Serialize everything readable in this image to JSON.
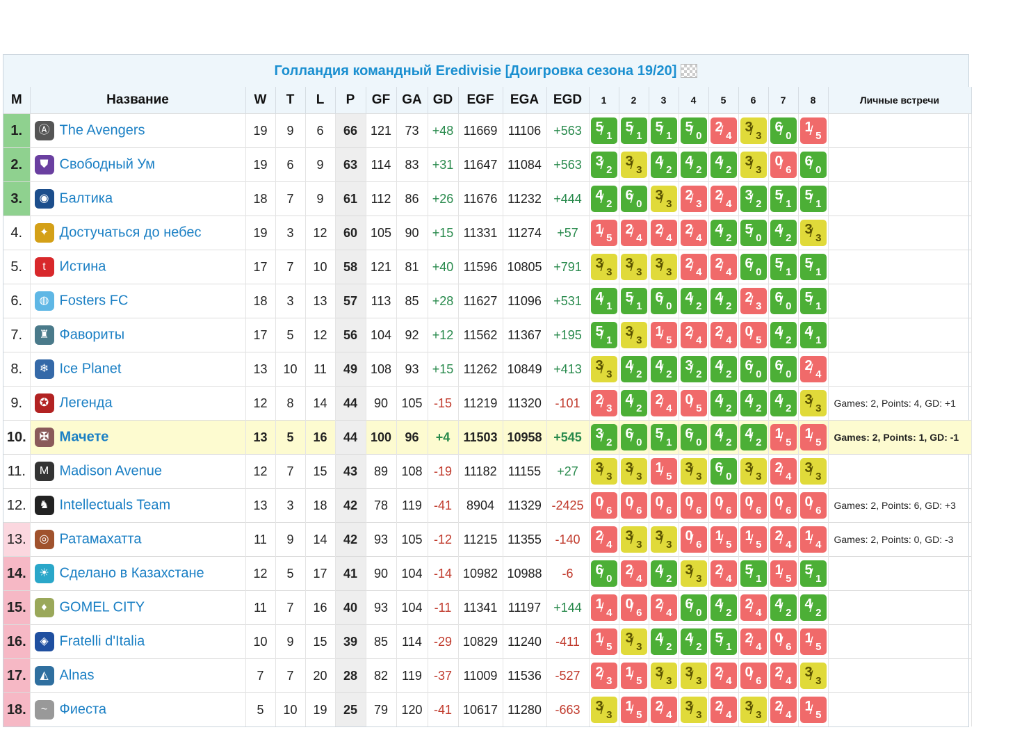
{
  "title": "Голландия командный Eredivisie [Доигровка сезона 19/20]",
  "headers": {
    "pos": "M",
    "name": "Название",
    "w": "W",
    "t": "T",
    "l": "L",
    "p": "P",
    "gf": "GF",
    "ga": "GA",
    "gd": "GD",
    "egf": "EGF",
    "ega": "EGA",
    "egd": "EGD",
    "games": [
      "1",
      "2",
      "3",
      "4",
      "5",
      "6",
      "7",
      "8"
    ],
    "h2h": "Личные встречи"
  },
  "colors": {
    "win": "#4caf36",
    "draw": "#e0da3a",
    "loss": "#f06a6a",
    "link": "#1a7fc4",
    "promo": "#8fd18f",
    "releg": "#f6b8c5",
    "highlight": "#fdfbd0"
  },
  "rows": [
    {
      "pos": "1.",
      "zone": "green",
      "name": "The Avengers",
      "logo": "avengers-logo",
      "w": "19",
      "t": "9",
      "l": "6",
      "p": "66",
      "gf": "121",
      "ga": "73",
      "gd": "+48",
      "egf": "11669",
      "ega": "11106",
      "egd": "+563",
      "games": [
        [
          "5",
          "1"
        ],
        [
          "5",
          "1"
        ],
        [
          "5",
          "1"
        ],
        [
          "5",
          "0"
        ],
        [
          "2",
          "4"
        ],
        [
          "3",
          "3"
        ],
        [
          "6",
          "0"
        ],
        [
          "1",
          "5"
        ]
      ],
      "h2h": ""
    },
    {
      "pos": "2.",
      "zone": "green",
      "name": "Свободный Ум",
      "logo": "shield-logo",
      "w": "19",
      "t": "6",
      "l": "9",
      "p": "63",
      "gf": "114",
      "ga": "83",
      "gd": "+31",
      "egf": "11647",
      "ega": "11084",
      "egd": "+563",
      "games": [
        [
          "3",
          "2"
        ],
        [
          "3",
          "3"
        ],
        [
          "4",
          "2"
        ],
        [
          "4",
          "2"
        ],
        [
          "4",
          "2"
        ],
        [
          "3",
          "3"
        ],
        [
          "0",
          "6"
        ],
        [
          "6",
          "0"
        ]
      ],
      "h2h": ""
    },
    {
      "pos": "3.",
      "zone": "green",
      "name": "Балтика",
      "logo": "baltika-logo",
      "w": "18",
      "t": "7",
      "l": "9",
      "p": "61",
      "gf": "112",
      "ga": "86",
      "gd": "+26",
      "egf": "11676",
      "ega": "11232",
      "egd": "+444",
      "games": [
        [
          "4",
          "2"
        ],
        [
          "6",
          "0"
        ],
        [
          "3",
          "3"
        ],
        [
          "2",
          "3"
        ],
        [
          "2",
          "4"
        ],
        [
          "3",
          "2"
        ],
        [
          "5",
          "1"
        ],
        [
          "5",
          "1"
        ]
      ],
      "h2h": ""
    },
    {
      "pos": "4.",
      "zone": "white",
      "name": "Достучаться до небес",
      "logo": "wings-logo",
      "w": "19",
      "t": "3",
      "l": "12",
      "p": "60",
      "gf": "105",
      "ga": "90",
      "gd": "+15",
      "egf": "11331",
      "ega": "11274",
      "egd": "+57",
      "games": [
        [
          "1",
          "5"
        ],
        [
          "2",
          "4"
        ],
        [
          "2",
          "4"
        ],
        [
          "2",
          "4"
        ],
        [
          "4",
          "2"
        ],
        [
          "5",
          "0"
        ],
        [
          "4",
          "2"
        ],
        [
          "3",
          "3"
        ]
      ],
      "h2h": ""
    },
    {
      "pos": "5.",
      "zone": "white",
      "name": "Истина",
      "logo": "truth-logo",
      "w": "17",
      "t": "7",
      "l": "10",
      "p": "58",
      "gf": "121",
      "ga": "81",
      "gd": "+40",
      "egf": "11596",
      "ega": "10805",
      "egd": "+791",
      "games": [
        [
          "3",
          "3"
        ],
        [
          "3",
          "3"
        ],
        [
          "3",
          "3"
        ],
        [
          "2",
          "4"
        ],
        [
          "2",
          "4"
        ],
        [
          "6",
          "0"
        ],
        [
          "5",
          "1"
        ],
        [
          "5",
          "1"
        ]
      ],
      "h2h": ""
    },
    {
      "pos": "6.",
      "zone": "white",
      "name": "Fosters FC",
      "logo": "fosters-logo",
      "w": "18",
      "t": "3",
      "l": "13",
      "p": "57",
      "gf": "113",
      "ga": "85",
      "gd": "+28",
      "egf": "11627",
      "ega": "11096",
      "egd": "+531",
      "games": [
        [
          "4",
          "1"
        ],
        [
          "5",
          "1"
        ],
        [
          "6",
          "0"
        ],
        [
          "4",
          "2"
        ],
        [
          "4",
          "2"
        ],
        [
          "2",
          "3"
        ],
        [
          "6",
          "0"
        ],
        [
          "5",
          "1"
        ]
      ],
      "h2h": ""
    },
    {
      "pos": "7.",
      "zone": "white",
      "name": "Фавориты",
      "logo": "favorites-logo",
      "w": "17",
      "t": "5",
      "l": "12",
      "p": "56",
      "gf": "104",
      "ga": "92",
      "gd": "+12",
      "egf": "11562",
      "ega": "11367",
      "egd": "+195",
      "games": [
        [
          "5",
          "1"
        ],
        [
          "3",
          "3"
        ],
        [
          "1",
          "5"
        ],
        [
          "2",
          "4"
        ],
        [
          "2",
          "4"
        ],
        [
          "0",
          "5"
        ],
        [
          "4",
          "2"
        ],
        [
          "4",
          "1"
        ]
      ],
      "h2h": ""
    },
    {
      "pos": "8.",
      "zone": "white",
      "name": "Ice Planet",
      "logo": "ice-planet-logo",
      "w": "13",
      "t": "10",
      "l": "11",
      "p": "49",
      "gf": "108",
      "ga": "93",
      "gd": "+15",
      "egf": "11262",
      "ega": "10849",
      "egd": "+413",
      "games": [
        [
          "3",
          "3"
        ],
        [
          "4",
          "2"
        ],
        [
          "4",
          "2"
        ],
        [
          "3",
          "2"
        ],
        [
          "4",
          "2"
        ],
        [
          "6",
          "0"
        ],
        [
          "6",
          "0"
        ],
        [
          "2",
          "4"
        ]
      ],
      "h2h": ""
    },
    {
      "pos": "9.",
      "zone": "white",
      "name": "Легенда",
      "logo": "legend-logo",
      "w": "12",
      "t": "8",
      "l": "14",
      "p": "44",
      "gf": "90",
      "ga": "105",
      "gd": "-15",
      "egf": "11219",
      "ega": "11320",
      "egd": "-101",
      "games": [
        [
          "2",
          "3"
        ],
        [
          "4",
          "2"
        ],
        [
          "2",
          "4"
        ],
        [
          "0",
          "5"
        ],
        [
          "4",
          "2"
        ],
        [
          "4",
          "2"
        ],
        [
          "4",
          "2"
        ],
        [
          "3",
          "3"
        ]
      ],
      "h2h": "Games: 2, Points: 4, GD: +1"
    },
    {
      "pos": "10.",
      "zone": "white",
      "name": "Мачете",
      "logo": "machete-logo",
      "w": "13",
      "t": "5",
      "l": "16",
      "p": "44",
      "gf": "100",
      "ga": "96",
      "gd": "+4",
      "egf": "11503",
      "ega": "10958",
      "egd": "+545",
      "games": [
        [
          "3",
          "2"
        ],
        [
          "6",
          "0"
        ],
        [
          "5",
          "1"
        ],
        [
          "6",
          "0"
        ],
        [
          "4",
          "2"
        ],
        [
          "4",
          "2"
        ],
        [
          "1",
          "5"
        ],
        [
          "1",
          "5"
        ]
      ],
      "h2h": "Games: 2, Points: 1, GD: -1",
      "highlight": true
    },
    {
      "pos": "11.",
      "zone": "white",
      "name": "Madison Avenue",
      "logo": "madison-logo",
      "w": "12",
      "t": "7",
      "l": "15",
      "p": "43",
      "gf": "89",
      "ga": "108",
      "gd": "-19",
      "egf": "11182",
      "ega": "11155",
      "egd": "+27",
      "games": [
        [
          "3",
          "3"
        ],
        [
          "3",
          "3"
        ],
        [
          "1",
          "5"
        ],
        [
          "3",
          "3"
        ],
        [
          "6",
          "0"
        ],
        [
          "3",
          "3"
        ],
        [
          "2",
          "4"
        ],
        [
          "3",
          "3"
        ]
      ],
      "h2h": ""
    },
    {
      "pos": "12.",
      "zone": "white",
      "name": "Intellectuals Team",
      "logo": "intellectuals-logo",
      "w": "13",
      "t": "3",
      "l": "18",
      "p": "42",
      "gf": "78",
      "ga": "119",
      "gd": "-41",
      "egf": "8904",
      "ega": "11329",
      "egd": "-2425",
      "games": [
        [
          "0",
          "6"
        ],
        [
          "0",
          "6"
        ],
        [
          "0",
          "6"
        ],
        [
          "0",
          "6"
        ],
        [
          "0",
          "6"
        ],
        [
          "0",
          "6"
        ],
        [
          "0",
          "6"
        ],
        [
          "0",
          "6"
        ]
      ],
      "h2h": "Games: 2, Points: 6, GD: +3"
    },
    {
      "pos": "13.",
      "zone": "pinklight",
      "name": "Ратамахатта",
      "logo": "ratamahatta-logo",
      "w": "11",
      "t": "9",
      "l": "14",
      "p": "42",
      "gf": "93",
      "ga": "105",
      "gd": "-12",
      "egf": "11215",
      "ega": "11355",
      "egd": "-140",
      "games": [
        [
          "2",
          "4"
        ],
        [
          "3",
          "3"
        ],
        [
          "3",
          "3"
        ],
        [
          "0",
          "6"
        ],
        [
          "1",
          "5"
        ],
        [
          "1",
          "5"
        ],
        [
          "2",
          "4"
        ],
        [
          "1",
          "4"
        ]
      ],
      "h2h": "Games: 2, Points: 0, GD: -3"
    },
    {
      "pos": "14.",
      "zone": "pink",
      "name": "Сделано в Казахстане",
      "logo": "kazakhstan-logo",
      "w": "12",
      "t": "5",
      "l": "17",
      "p": "41",
      "gf": "90",
      "ga": "104",
      "gd": "-14",
      "egf": "10982",
      "ega": "10988",
      "egd": "-6",
      "games": [
        [
          "6",
          "0"
        ],
        [
          "2",
          "4"
        ],
        [
          "4",
          "2"
        ],
        [
          "3",
          "3"
        ],
        [
          "2",
          "4"
        ],
        [
          "5",
          "1"
        ],
        [
          "1",
          "5"
        ],
        [
          "5",
          "1"
        ]
      ],
      "h2h": ""
    },
    {
      "pos": "15.",
      "zone": "pink",
      "name": "GOMEL CITY",
      "logo": "gomel-logo",
      "w": "11",
      "t": "7",
      "l": "16",
      "p": "40",
      "gf": "93",
      "ga": "104",
      "gd": "-11",
      "egf": "11341",
      "ega": "11197",
      "egd": "+144",
      "games": [
        [
          "1",
          "4"
        ],
        [
          "0",
          "6"
        ],
        [
          "2",
          "4"
        ],
        [
          "6",
          "0"
        ],
        [
          "4",
          "2"
        ],
        [
          "2",
          "4"
        ],
        [
          "4",
          "2"
        ],
        [
          "4",
          "2"
        ]
      ],
      "h2h": ""
    },
    {
      "pos": "16.",
      "zone": "pink",
      "name": "Fratelli d'Italia",
      "logo": "fratelli-logo",
      "w": "10",
      "t": "9",
      "l": "15",
      "p": "39",
      "gf": "85",
      "ga": "114",
      "gd": "-29",
      "egf": "10829",
      "ega": "11240",
      "egd": "-411",
      "games": [
        [
          "1",
          "5"
        ],
        [
          "3",
          "3"
        ],
        [
          "4",
          "2"
        ],
        [
          "4",
          "2"
        ],
        [
          "5",
          "1"
        ],
        [
          "2",
          "4"
        ],
        [
          "0",
          "6"
        ],
        [
          "1",
          "5"
        ]
      ],
      "h2h": ""
    },
    {
      "pos": "17.",
      "zone": "pink",
      "name": "Alnas",
      "logo": "alnas-logo",
      "w": "7",
      "t": "7",
      "l": "20",
      "p": "28",
      "gf": "82",
      "ga": "119",
      "gd": "-37",
      "egf": "11009",
      "ega": "11536",
      "egd": "-527",
      "games": [
        [
          "2",
          "3"
        ],
        [
          "1",
          "5"
        ],
        [
          "3",
          "3"
        ],
        [
          "3",
          "3"
        ],
        [
          "2",
          "4"
        ],
        [
          "0",
          "6"
        ],
        [
          "2",
          "4"
        ],
        [
          "3",
          "3"
        ]
      ],
      "h2h": ""
    },
    {
      "pos": "18.",
      "zone": "pink",
      "name": "Фиеста",
      "logo": "fiesta-logo",
      "w": "5",
      "t": "10",
      "l": "19",
      "p": "25",
      "gf": "79",
      "ga": "120",
      "gd": "-41",
      "egf": "10617",
      "ega": "11280",
      "egd": "-663",
      "games": [
        [
          "3",
          "3"
        ],
        [
          "1",
          "5"
        ],
        [
          "2",
          "4"
        ],
        [
          "3",
          "3"
        ],
        [
          "2",
          "4"
        ],
        [
          "3",
          "3"
        ],
        [
          "2",
          "4"
        ],
        [
          "1",
          "5"
        ]
      ],
      "h2h": ""
    }
  ]
}
